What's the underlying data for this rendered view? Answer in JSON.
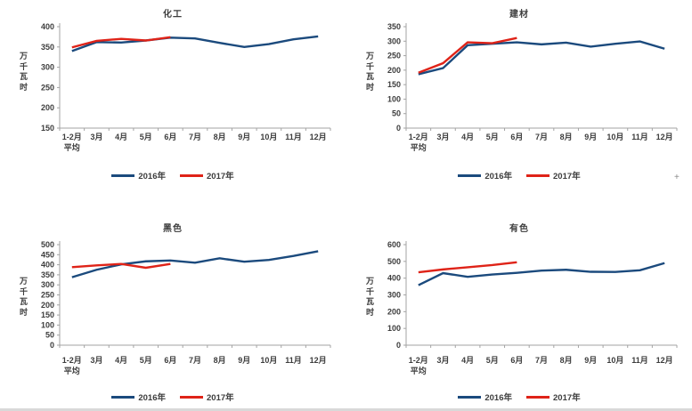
{
  "page": {
    "background": "#ffffff"
  },
  "artifacts": {
    "plus_marker": "+"
  },
  "legend": {
    "series_2016": "2016年",
    "series_2017": "2017年"
  },
  "colors": {
    "series_2016": "#1b4a7d",
    "series_2017": "#df2318",
    "axis": "#a3a3a3",
    "text": "#3d3d3d"
  },
  "chart_data": [
    {
      "type": "line",
      "title": "化工",
      "ylabel": "万千瓦时",
      "x_categories": [
        "1-2月\n平均",
        "3月",
        "4月",
        "5月",
        "6月",
        "7月",
        "8月",
        "9月",
        "10月",
        "11月",
        "12月"
      ],
      "ylim": [
        150,
        400
      ],
      "ytick_step": 50,
      "grid": false,
      "legend_position": "bottom",
      "series": [
        {
          "name": "2016年",
          "color": "#1b4a7d",
          "values": [
            340,
            362,
            361,
            366,
            373,
            371,
            360,
            350,
            357,
            369,
            376
          ]
        },
        {
          "name": "2017年",
          "color": "#df2318",
          "values": [
            349,
            365,
            370,
            366,
            374
          ]
        }
      ]
    },
    {
      "type": "line",
      "title": "建材",
      "ylabel": "万千瓦时",
      "x_categories": [
        "1-2月\n平均",
        "3月",
        "4月",
        "5月",
        "6月",
        "7月",
        "8月",
        "9月",
        "10月",
        "11月",
        "12月"
      ],
      "ylim": [
        0,
        350
      ],
      "ytick_step": 50,
      "grid": false,
      "legend_position": "bottom",
      "series": [
        {
          "name": "2016年",
          "color": "#1b4a7d",
          "values": [
            186,
            207,
            286,
            291,
            296,
            289,
            295,
            281,
            291,
            299,
            274
          ]
        },
        {
          "name": "2017年",
          "color": "#df2318",
          "values": [
            191,
            224,
            296,
            293,
            311
          ]
        }
      ]
    },
    {
      "type": "line",
      "title": "黑色",
      "ylabel": "万千瓦时",
      "x_categories": [
        "1-2月\n平均",
        "3月",
        "4月",
        "5月",
        "6月",
        "7月",
        "8月",
        "9月",
        "10月",
        "11月",
        "12月"
      ],
      "ylim": [
        0,
        500
      ],
      "ytick_step": 50,
      "grid": false,
      "legend_position": "bottom",
      "series": [
        {
          "name": "2016年",
          "color": "#1b4a7d",
          "values": [
            338,
            375,
            402,
            417,
            421,
            410,
            432,
            415,
            424,
            444,
            467
          ]
        },
        {
          "name": "2017年",
          "color": "#df2318",
          "values": [
            388,
            397,
            404,
            385,
            404
          ]
        }
      ]
    },
    {
      "type": "line",
      "title": "有色",
      "ylabel": "万千瓦时",
      "x_categories": [
        "1-2月\n平均",
        "3月",
        "4月",
        "5月",
        "6月",
        "7月",
        "8月",
        "9月",
        "10月",
        "11月",
        "12月"
      ],
      "ylim": [
        0,
        600
      ],
      "ytick_step": 100,
      "grid": false,
      "legend_position": "bottom",
      "series": [
        {
          "name": "2016年",
          "color": "#1b4a7d",
          "values": [
            358,
            430,
            408,
            422,
            432,
            445,
            450,
            438,
            437,
            447,
            490
          ]
        },
        {
          "name": "2017年",
          "color": "#df2318",
          "values": [
            435,
            452,
            465,
            478,
            495
          ]
        }
      ]
    }
  ]
}
